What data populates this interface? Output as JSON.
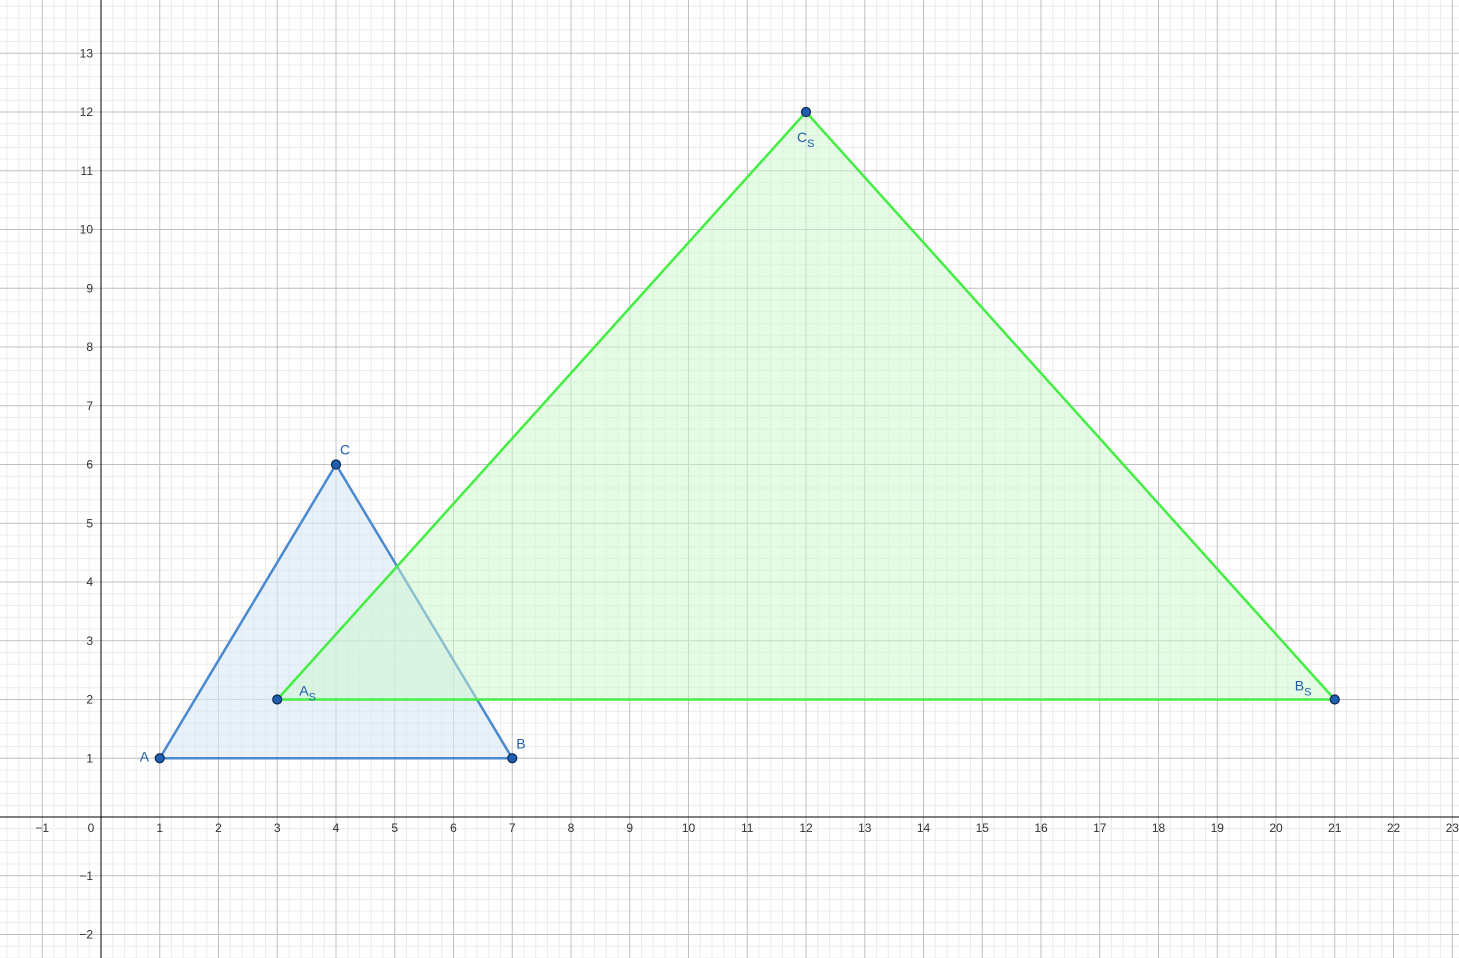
{
  "axes": {
    "x_range": [
      -2,
      23
    ],
    "y_range": [
      -2.5,
      14
    ],
    "x_ticks": [
      -1,
      0,
      1,
      2,
      3,
      4,
      5,
      6,
      7,
      8,
      9,
      10,
      11,
      12,
      13,
      14,
      15,
      16,
      17,
      18,
      19,
      20,
      21,
      22,
      23
    ],
    "y_ticks": [
      -2,
      -1,
      1,
      2,
      3,
      4,
      5,
      6,
      7,
      8,
      9,
      10,
      11,
      12,
      13
    ],
    "grid": true,
    "minor_grid": true
  },
  "triangles": [
    {
      "name": "original",
      "stroke": "#4a88d0",
      "fill": "#d8e6f7",
      "fill_opacity": 0.6,
      "points": [
        {
          "label": "A",
          "sub": "",
          "x": 1,
          "y": 1
        },
        {
          "label": "B",
          "sub": "",
          "x": 7,
          "y": 1
        },
        {
          "label": "C",
          "sub": "",
          "x": 4,
          "y": 6
        }
      ]
    },
    {
      "name": "scaled",
      "stroke": "#44ee44",
      "fill": "#ccf8cc",
      "fill_opacity": 0.5,
      "points": [
        {
          "label": "A",
          "sub": "S",
          "x": 3,
          "y": 2
        },
        {
          "label": "B",
          "sub": "S",
          "x": 21,
          "y": 2
        },
        {
          "label": "C",
          "sub": "S",
          "x": 12,
          "y": 12
        }
      ]
    }
  ],
  "colors": {
    "point_fill": "#1f5fae",
    "point_stroke": "#0b2a55",
    "label": "#1f5fae",
    "axis": "#000000",
    "major_grid": "#c0c0c0",
    "minor_grid": "#ececec"
  }
}
